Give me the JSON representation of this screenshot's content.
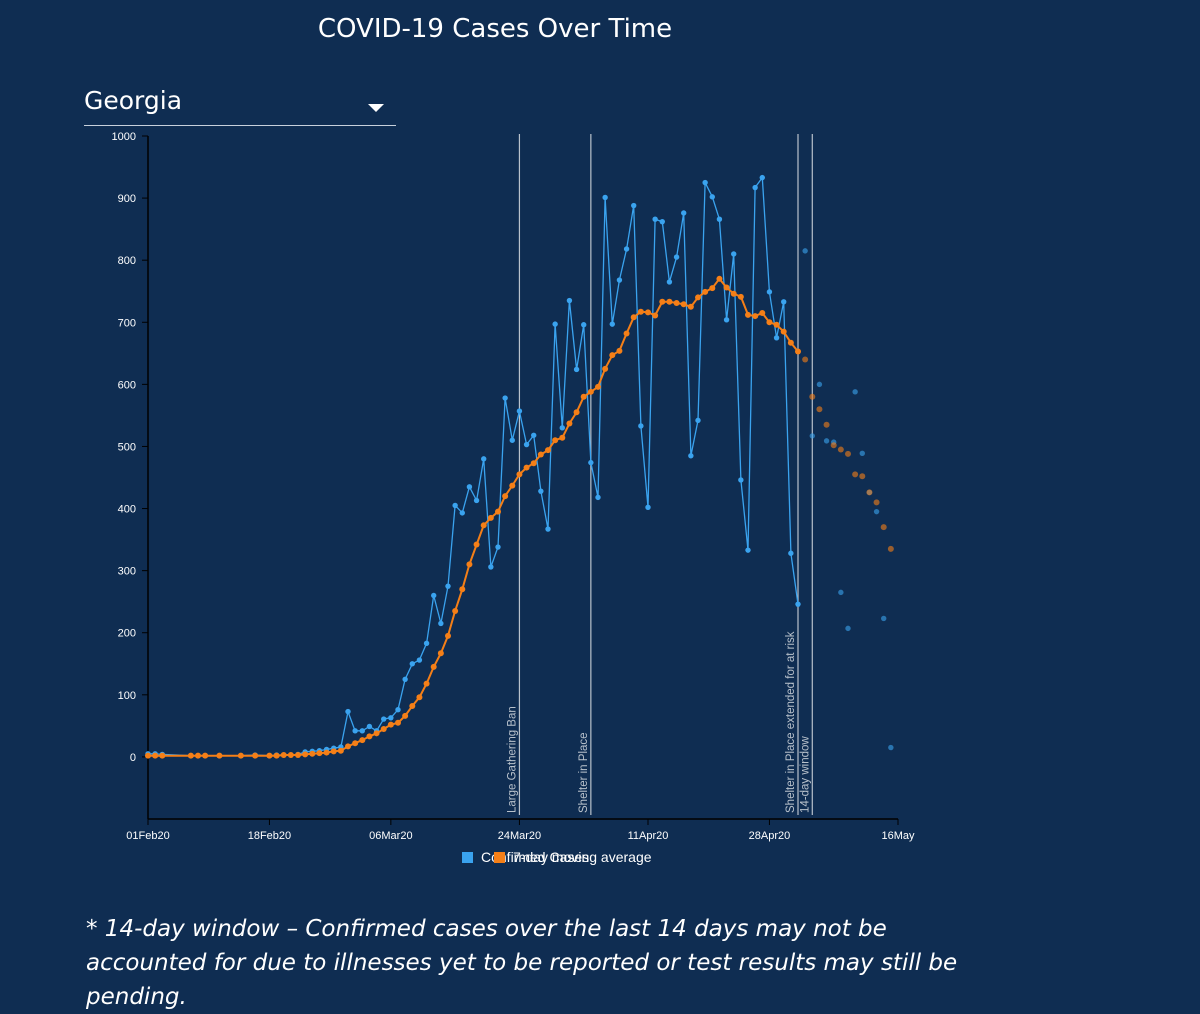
{
  "title": "COVID-19 Cases Over Time",
  "state_selector": {
    "selected": "Georgia"
  },
  "footnote": "* 14-day window – Confirmed cases over the last 14 days may not be accounted for due to illnesses yet to be reported or test results may still be pending.",
  "colors": {
    "background": "#0f2d52",
    "confirmed": "#3aa3ef",
    "average": "#f57f17",
    "event_line": "#b9c2cc"
  },
  "chart_data": {
    "type": "line",
    "x_type": "date",
    "ylim": [
      -100,
      1000
    ],
    "yticks": [
      0,
      100,
      200,
      300,
      400,
      500,
      600,
      700,
      800,
      900,
      1000
    ],
    "xticks": [
      {
        "date": "2020-02-01",
        "label": "01Feb20"
      },
      {
        "date": "2020-02-18",
        "label": "18Feb20"
      },
      {
        "date": "2020-03-06",
        "label": "06Mar20"
      },
      {
        "date": "2020-03-24",
        "label": "24Mar20"
      },
      {
        "date": "2020-04-11",
        "label": "11Apr20"
      },
      {
        "date": "2020-04-28",
        "label": "28Apr20"
      },
      {
        "date": "2020-05-16",
        "label": "16May"
      }
    ],
    "xlim": [
      "2020-02-01",
      "2020-05-16"
    ],
    "legend": [
      "Confirmed Cases",
      "7-day moving average"
    ],
    "legend_position": "bottom",
    "events": [
      {
        "date": "2020-03-24",
        "label": "Large Gathering Ban"
      },
      {
        "date": "2020-04-03",
        "label": "Shelter in Place"
      },
      {
        "date": "2020-05-02",
        "label": "Shelter in Place extended for at risk"
      },
      {
        "date": "2020-05-04",
        "label": "14-day window"
      }
    ],
    "series": [
      {
        "name": "Confirmed Cases",
        "points": [
          [
            "2020-02-01",
            5
          ],
          [
            "2020-02-02",
            5
          ],
          [
            "2020-02-03",
            4
          ],
          [
            "2020-02-07",
            2
          ],
          [
            "2020-02-08",
            2
          ],
          [
            "2020-02-09",
            2
          ],
          [
            "2020-02-11",
            2
          ],
          [
            "2020-02-14",
            2
          ],
          [
            "2020-02-16",
            3
          ],
          [
            "2020-02-18",
            2
          ],
          [
            "2020-02-19",
            3
          ],
          [
            "2020-02-20",
            3
          ],
          [
            "2020-02-21",
            3
          ],
          [
            "2020-02-22",
            4
          ],
          [
            "2020-02-23",
            8
          ],
          [
            "2020-02-24",
            9
          ],
          [
            "2020-02-25",
            10
          ],
          [
            "2020-02-26",
            12
          ],
          [
            "2020-02-27",
            14
          ],
          [
            "2020-02-28",
            16
          ],
          [
            "2020-02-29",
            73
          ],
          [
            "2020-03-01",
            42
          ],
          [
            "2020-03-02",
            42
          ],
          [
            "2020-03-03",
            49
          ],
          [
            "2020-03-04",
            42
          ],
          [
            "2020-03-05",
            61
          ],
          [
            "2020-03-06",
            63
          ],
          [
            "2020-03-07",
            76
          ],
          [
            "2020-03-08",
            125
          ],
          [
            "2020-03-09",
            150
          ],
          [
            "2020-03-10",
            156
          ],
          [
            "2020-03-11",
            183
          ],
          [
            "2020-03-12",
            260
          ],
          [
            "2020-03-13",
            215
          ],
          [
            "2020-03-14",
            275
          ],
          [
            "2020-03-15",
            405
          ],
          [
            "2020-03-16",
            393
          ],
          [
            "2020-03-17",
            435
          ],
          [
            "2020-03-18",
            413
          ],
          [
            "2020-03-19",
            480
          ],
          [
            "2020-03-20",
            306
          ],
          [
            "2020-03-21",
            338
          ],
          [
            "2020-03-22",
            578
          ],
          [
            "2020-03-23",
            510
          ],
          [
            "2020-03-24",
            557
          ],
          [
            "2020-03-25",
            503
          ],
          [
            "2020-03-26",
            518
          ],
          [
            "2020-03-27",
            428
          ],
          [
            "2020-03-28",
            367
          ],
          [
            "2020-03-29",
            697
          ],
          [
            "2020-03-30",
            530
          ],
          [
            "2020-03-31",
            735
          ],
          [
            "2020-04-01",
            624
          ],
          [
            "2020-04-02",
            696
          ],
          [
            "2020-04-03",
            474
          ],
          [
            "2020-04-04",
            418
          ],
          [
            "2020-04-05",
            901
          ],
          [
            "2020-04-06",
            697
          ],
          [
            "2020-04-07",
            768
          ],
          [
            "2020-04-08",
            818
          ],
          [
            "2020-04-09",
            888
          ],
          [
            "2020-04-10",
            533
          ],
          [
            "2020-04-11",
            402
          ],
          [
            "2020-04-12",
            866
          ],
          [
            "2020-04-13",
            862
          ],
          [
            "2020-04-14",
            765
          ],
          [
            "2020-04-15",
            805
          ],
          [
            "2020-04-16",
            876
          ],
          [
            "2020-04-17",
            485
          ],
          [
            "2020-04-18",
            542
          ],
          [
            "2020-04-19",
            925
          ],
          [
            "2020-04-20",
            902
          ],
          [
            "2020-04-21",
            866
          ],
          [
            "2020-04-22",
            704
          ],
          [
            "2020-04-23",
            810
          ],
          [
            "2020-04-24",
            446
          ],
          [
            "2020-04-25",
            333
          ],
          [
            "2020-04-26",
            917
          ],
          [
            "2020-04-27",
            933
          ],
          [
            "2020-04-28",
            749
          ],
          [
            "2020-04-29",
            675
          ],
          [
            "2020-04-30",
            733
          ],
          [
            "2020-05-01",
            328
          ],
          [
            "2020-05-02",
            246
          ]
        ],
        "window_points": [
          [
            "2020-05-03",
            815
          ],
          [
            "2020-05-04",
            517
          ],
          [
            "2020-05-05",
            600
          ],
          [
            "2020-05-06",
            509
          ],
          [
            "2020-05-07",
            507
          ],
          [
            "2020-05-08",
            265
          ],
          [
            "2020-05-09",
            207
          ],
          [
            "2020-05-10",
            588
          ],
          [
            "2020-05-11",
            489
          ],
          [
            "2020-05-12",
            426
          ],
          [
            "2020-05-13",
            395
          ],
          [
            "2020-05-14",
            223
          ],
          [
            "2020-05-15",
            15
          ]
        ]
      },
      {
        "name": "7-day moving average",
        "points": [
          [
            "2020-02-01",
            2
          ],
          [
            "2020-02-02",
            2
          ],
          [
            "2020-02-03",
            2
          ],
          [
            "2020-02-07",
            2
          ],
          [
            "2020-02-08",
            2
          ],
          [
            "2020-02-09",
            2
          ],
          [
            "2020-02-11",
            2
          ],
          [
            "2020-02-14",
            2
          ],
          [
            "2020-02-16",
            2
          ],
          [
            "2020-02-18",
            2
          ],
          [
            "2020-02-19",
            2
          ],
          [
            "2020-02-20",
            3
          ],
          [
            "2020-02-21",
            3
          ],
          [
            "2020-02-22",
            3
          ],
          [
            "2020-02-23",
            4
          ],
          [
            "2020-02-24",
            5
          ],
          [
            "2020-02-25",
            6
          ],
          [
            "2020-02-26",
            7
          ],
          [
            "2020-02-27",
            9
          ],
          [
            "2020-02-28",
            10
          ],
          [
            "2020-02-29",
            17
          ],
          [
            "2020-03-01",
            22
          ],
          [
            "2020-03-02",
            27
          ],
          [
            "2020-03-03",
            33
          ],
          [
            "2020-03-04",
            38
          ],
          [
            "2020-03-05",
            45
          ],
          [
            "2020-03-06",
            52
          ],
          [
            "2020-03-07",
            55
          ],
          [
            "2020-03-08",
            66
          ],
          [
            "2020-03-09",
            82
          ],
          [
            "2020-03-10",
            96
          ],
          [
            "2020-03-11",
            118
          ],
          [
            "2020-03-12",
            145
          ],
          [
            "2020-03-13",
            167
          ],
          [
            "2020-03-14",
            195
          ],
          [
            "2020-03-15",
            235
          ],
          [
            "2020-03-16",
            270
          ],
          [
            "2020-03-17",
            310
          ],
          [
            "2020-03-18",
            342
          ],
          [
            "2020-03-19",
            373
          ],
          [
            "2020-03-20",
            385
          ],
          [
            "2020-03-21",
            395
          ],
          [
            "2020-03-22",
            420
          ],
          [
            "2020-03-23",
            437
          ],
          [
            "2020-03-24",
            455
          ],
          [
            "2020-03-25",
            466
          ],
          [
            "2020-03-26",
            473
          ],
          [
            "2020-03-27",
            487
          ],
          [
            "2020-03-28",
            494
          ],
          [
            "2020-03-29",
            510
          ],
          [
            "2020-03-30",
            514
          ],
          [
            "2020-03-31",
            537
          ],
          [
            "2020-04-01",
            555
          ],
          [
            "2020-04-02",
            580
          ],
          [
            "2020-04-03",
            588
          ],
          [
            "2020-04-04",
            596
          ],
          [
            "2020-04-05",
            625
          ],
          [
            "2020-04-06",
            647
          ],
          [
            "2020-04-07",
            654
          ],
          [
            "2020-04-08",
            682
          ],
          [
            "2020-04-09",
            708
          ],
          [
            "2020-04-10",
            717
          ],
          [
            "2020-04-11",
            716
          ],
          [
            "2020-04-12",
            711
          ],
          [
            "2020-04-13",
            733
          ],
          [
            "2020-04-14",
            733
          ],
          [
            "2020-04-15",
            731
          ],
          [
            "2020-04-16",
            729
          ],
          [
            "2020-04-17",
            725
          ],
          [
            "2020-04-18",
            740
          ],
          [
            "2020-04-19",
            749
          ],
          [
            "2020-04-20",
            755
          ],
          [
            "2020-04-21",
            770
          ],
          [
            "2020-04-22",
            756
          ],
          [
            "2020-04-23",
            746
          ],
          [
            "2020-04-24",
            741
          ],
          [
            "2020-04-25",
            712
          ],
          [
            "2020-04-26",
            710
          ],
          [
            "2020-04-27",
            715
          ],
          [
            "2020-04-28",
            700
          ],
          [
            "2020-04-29",
            696
          ],
          [
            "2020-04-30",
            685
          ],
          [
            "2020-05-01",
            667
          ],
          [
            "2020-05-02",
            653
          ]
        ],
        "window_points": [
          [
            "2020-05-03",
            640
          ],
          [
            "2020-05-04",
            580
          ],
          [
            "2020-05-05",
            560
          ],
          [
            "2020-05-06",
            535
          ],
          [
            "2020-05-07",
            502
          ],
          [
            "2020-05-08",
            495
          ],
          [
            "2020-05-09",
            488
          ],
          [
            "2020-05-10",
            455
          ],
          [
            "2020-05-11",
            452
          ],
          [
            "2020-05-12",
            426
          ],
          [
            "2020-05-13",
            410
          ],
          [
            "2020-05-14",
            370
          ],
          [
            "2020-05-15",
            335
          ]
        ]
      }
    ]
  }
}
